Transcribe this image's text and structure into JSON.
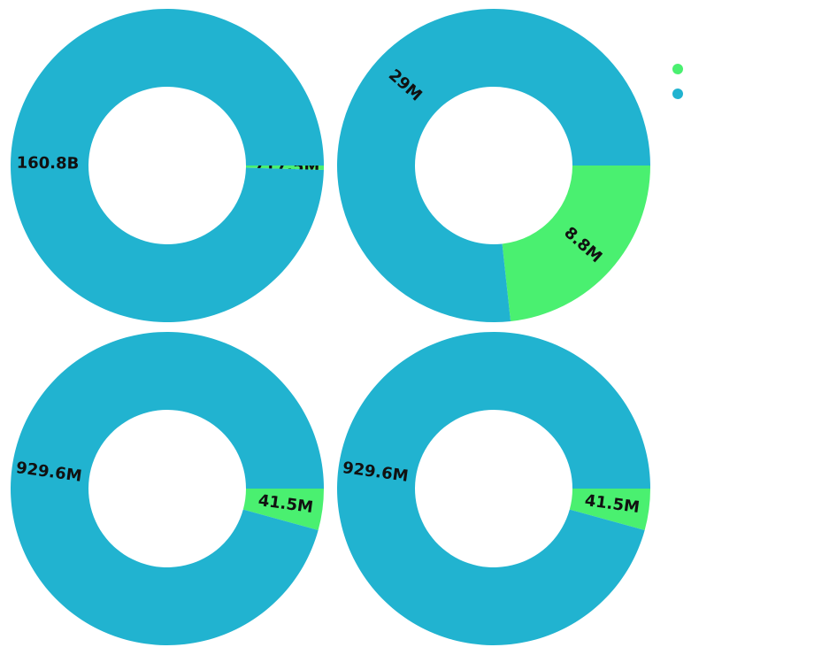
{
  "chart_data": [
    {
      "type": "pie",
      "donut": true,
      "slices": [
        {
          "label": "717.5M",
          "value": 717.5,
          "color": "#4af070"
        },
        {
          "label": "160.8B",
          "value": 160800,
          "color": "#21b3d0"
        }
      ]
    },
    {
      "type": "pie",
      "donut": true,
      "slices": [
        {
          "label": "8.8M",
          "value": 8.8,
          "color": "#4af070"
        },
        {
          "label": "29M",
          "value": 29,
          "color": "#21b3d0"
        }
      ]
    },
    {
      "type": "pie",
      "donut": true,
      "slices": [
        {
          "label": "41.5M",
          "value": 41.5,
          "color": "#4af070"
        },
        {
          "label": "929.6M",
          "value": 929.6,
          "color": "#21b3d0"
        }
      ]
    },
    {
      "type": "pie",
      "donut": true,
      "slices": [
        {
          "label": "41.5M",
          "value": 41.5,
          "color": "#4af070"
        },
        {
          "label": "929.6M",
          "value": 929.6,
          "color": "#21b3d0"
        }
      ]
    }
  ],
  "legend": {
    "placement": "top-right",
    "items": [
      {
        "label": "",
        "color": "#4af070"
      },
      {
        "label": "",
        "color": "#21b3d0"
      }
    ]
  }
}
